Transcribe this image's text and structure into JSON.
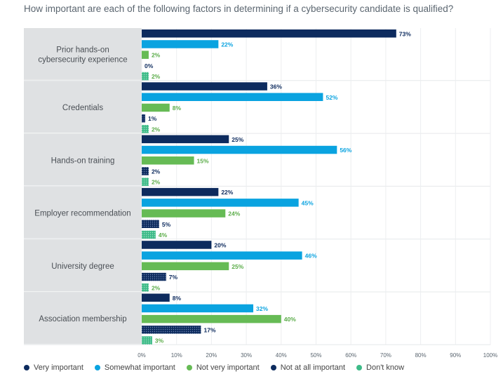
{
  "title": "How important are each of the following factors in determining if a cybersecurity candidate is qualified?",
  "chart_data": {
    "type": "bar",
    "orientation": "horizontal",
    "categories": [
      "Prior hands-on cybersecurity experience",
      "Credentials",
      "Hands-on training",
      "Employer recommendation",
      "University degree",
      "Association membership"
    ],
    "category_lines": [
      [
        "Prior hands-on",
        "cybersecurity experience"
      ],
      [
        "Credentials"
      ],
      [
        "Hands-on training"
      ],
      [
        "Employer recommendation"
      ],
      [
        "University degree"
      ],
      [
        "Association membership"
      ]
    ],
    "series": [
      {
        "name": "Very important",
        "color": "#0d2b5e",
        "label_color": "#0d2b5e",
        "pattern": false,
        "values": [
          73,
          36,
          25,
          22,
          20,
          8
        ]
      },
      {
        "name": "Somewhat important",
        "color": "#0aa3e0",
        "label_color": "#0aa3e0",
        "pattern": false,
        "values": [
          22,
          52,
          56,
          45,
          46,
          32
        ]
      },
      {
        "name": "Not very important",
        "color": "#66bb55",
        "label_color": "#5aac48",
        "pattern": false,
        "values": [
          2,
          8,
          15,
          24,
          25,
          40
        ]
      },
      {
        "name": "Not at all important",
        "color": "#0d2b5e",
        "label_color": "#0d2b5e",
        "pattern": true,
        "values": [
          0,
          1,
          2,
          5,
          7,
          17
        ]
      },
      {
        "name": "Don't know",
        "color": "#3dbb88",
        "label_color": "#5aac48",
        "pattern": false,
        "values": [
          2,
          2,
          2,
          4,
          2,
          3
        ]
      }
    ],
    "value_suffix": "%",
    "xlim": [
      0,
      100
    ],
    "xticks": [
      "0%",
      "10%",
      "20%",
      "30%",
      "40%",
      "50%",
      "60%",
      "70%",
      "80%",
      "90%",
      "100%"
    ],
    "grid": true,
    "legend_position": "bottom-left"
  }
}
